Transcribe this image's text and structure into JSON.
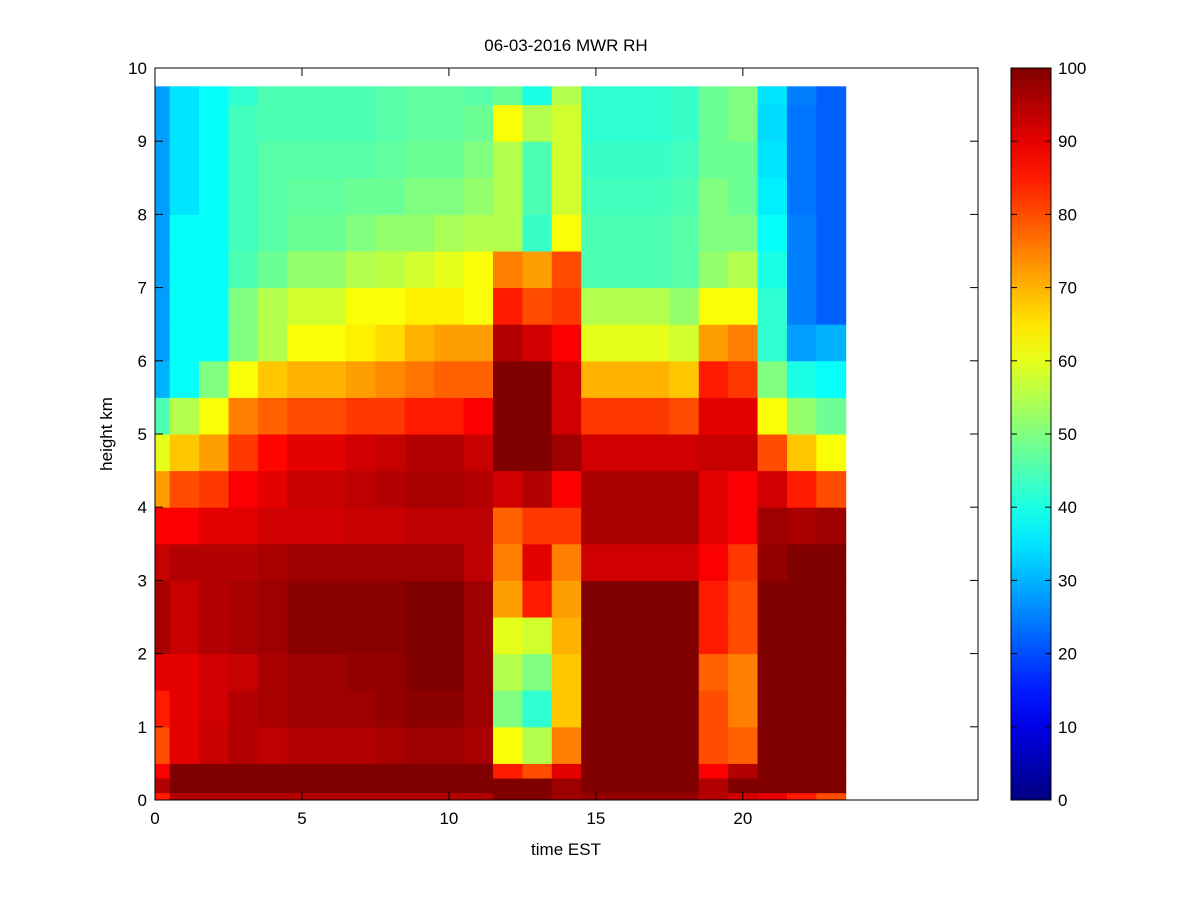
{
  "chart_data": {
    "type": "heatmap",
    "title": "06-03-2016 MWR RH",
    "xlabel": "time EST",
    "ylabel": "height km",
    "xlim": [
      0,
      28
    ],
    "ylim": [
      0,
      10
    ],
    "xticks": [
      0,
      5,
      10,
      15,
      20
    ],
    "yticks": [
      0,
      1,
      2,
      3,
      4,
      5,
      6,
      7,
      8,
      9,
      10
    ],
    "colormap": "jet",
    "clim": [
      0,
      100
    ],
    "colorbar_ticks": [
      0,
      10,
      20,
      30,
      40,
      50,
      60,
      70,
      80,
      90,
      100
    ],
    "colorbar_placement": "right",
    "grid": false,
    "x": [
      0,
      1,
      2,
      3,
      4,
      5,
      6,
      7,
      8,
      9,
      10,
      11,
      12,
      13,
      14,
      15,
      16,
      17,
      18,
      19,
      20,
      21,
      22,
      23
    ],
    "y_edges": [
      0,
      0.1,
      0.3,
      0.5,
      1,
      1.5,
      2,
      2.5,
      3,
      3.5,
      4,
      4.5,
      5,
      5.5,
      6,
      6.5,
      7,
      7.5,
      8,
      8.5,
      9,
      9.5,
      9.75
    ],
    "columns": [
      [
        85,
        95,
        88,
        80,
        85,
        90,
        96,
        96,
        93,
        88,
        72,
        60,
        45,
        30,
        28,
        28,
        28,
        28,
        28,
        28,
        28,
        28
      ],
      [
        95,
        100,
        100,
        90,
        90,
        90,
        93,
        93,
        95,
        88,
        80,
        68,
        55,
        38,
        38,
        38,
        38,
        38,
        35,
        35,
        35,
        35
      ],
      [
        95,
        100,
        100,
        93,
        92,
        92,
        95,
        95,
        95,
        90,
        82,
        72,
        62,
        50,
        38,
        38,
        38,
        38,
        38,
        38,
        38,
        38
      ],
      [
        95,
        100,
        100,
        95,
        95,
        93,
        96,
        96,
        95,
        90,
        88,
        82,
        75,
        62,
        50,
        50,
        45,
        44,
        44,
        44,
        44,
        42
      ],
      [
        95,
        100,
        100,
        94,
        96,
        96,
        97,
        97,
        96,
        92,
        90,
        87,
        78,
        68,
        55,
        55,
        48,
        46,
        46,
        46,
        45,
        45
      ],
      [
        95,
        100,
        100,
        95,
        97,
        97,
        99,
        99,
        97,
        92,
        93,
        90,
        80,
        70,
        62,
        58,
        52,
        48,
        47,
        46,
        45,
        45
      ],
      [
        95,
        100,
        100,
        95,
        97,
        97,
        99,
        99,
        97,
        92,
        93,
        90,
        80,
        70,
        62,
        58,
        52,
        48,
        47,
        46,
        45,
        45
      ],
      [
        95,
        100,
        100,
        95,
        97,
        98,
        99,
        99,
        97,
        93,
        94,
        92,
        82,
        72,
        64,
        62,
        55,
        50,
        48,
        46,
        45,
        45
      ],
      [
        95,
        100,
        100,
        96,
        98,
        98,
        99,
        99,
        97,
        93,
        95,
        93,
        82,
        74,
        66,
        62,
        56,
        52,
        48,
        47,
        46,
        46
      ],
      [
        95,
        100,
        100,
        97,
        99,
        100,
        100,
        100,
        97,
        94,
        96,
        95,
        85,
        76,
        70,
        64,
        58,
        52,
        50,
        48,
        47,
        47
      ],
      [
        95,
        100,
        100,
        97,
        99,
        100,
        100,
        100,
        97,
        94,
        96,
        95,
        85,
        78,
        72,
        64,
        60,
        54,
        50,
        48,
        47,
        47
      ],
      [
        95,
        100,
        100,
        96,
        97,
        97,
        97,
        97,
        94,
        94,
        95,
        93,
        88,
        78,
        72,
        62,
        62,
        55,
        52,
        50,
        48,
        46
      ],
      [
        100,
        100,
        85,
        62,
        50,
        55,
        60,
        72,
        75,
        78,
        92,
        100,
        100,
        100,
        95,
        85,
        75,
        55,
        55,
        55,
        62,
        48
      ],
      [
        100,
        100,
        80,
        55,
        42,
        50,
        58,
        85,
        90,
        82,
        95,
        100,
        100,
        100,
        92,
        80,
        72,
        43,
        45,
        45,
        55,
        40
      ],
      [
        97,
        97,
        90,
        75,
        68,
        68,
        70,
        72,
        75,
        82,
        88,
        97,
        92,
        92,
        88,
        82,
        80,
        62,
        58,
        58,
        58,
        55
      ],
      [
        98,
        100,
        100,
        100,
        100,
        100,
        100,
        100,
        92,
        96,
        96,
        92,
        82,
        70,
        60,
        55,
        45,
        45,
        44,
        43,
        42,
        42
      ],
      [
        98,
        100,
        100,
        100,
        100,
        100,
        100,
        100,
        92,
        96,
        96,
        92,
        82,
        70,
        60,
        55,
        45,
        45,
        44,
        43,
        42,
        42
      ],
      [
        98,
        100,
        100,
        100,
        100,
        100,
        100,
        100,
        92,
        96,
        96,
        92,
        82,
        70,
        60,
        55,
        45,
        45,
        44,
        43,
        42,
        42
      ],
      [
        98,
        100,
        100,
        100,
        100,
        100,
        100,
        100,
        92,
        96,
        96,
        92,
        80,
        68,
        58,
        52,
        46,
        46,
        45,
        44,
        43,
        43
      ],
      [
        95,
        95,
        88,
        80,
        80,
        78,
        85,
        85,
        88,
        90,
        90,
        93,
        90,
        85,
        72,
        62,
        52,
        50,
        50,
        48,
        48,
        48
      ],
      [
        92,
        100,
        95,
        78,
        75,
        75,
        80,
        80,
        82,
        88,
        88,
        93,
        90,
        82,
        75,
        62,
        55,
        50,
        48,
        48,
        50,
        50
      ],
      [
        90,
        100,
        100,
        100,
        100,
        100,
        100,
        100,
        98,
        97,
        92,
        80,
        62,
        50,
        42,
        42,
        40,
        38,
        36,
        35,
        34,
        35
      ],
      [
        85,
        100,
        100,
        100,
        100,
        100,
        100,
        100,
        100,
        96,
        85,
        68,
        52,
        40,
        28,
        25,
        25,
        25,
        24,
        24,
        24,
        25
      ],
      [
        80,
        100,
        100,
        100,
        100,
        100,
        100,
        100,
        100,
        97,
        80,
        62,
        48,
        38,
        30,
        22,
        22,
        22,
        22,
        22,
        22,
        22
      ]
    ]
  }
}
